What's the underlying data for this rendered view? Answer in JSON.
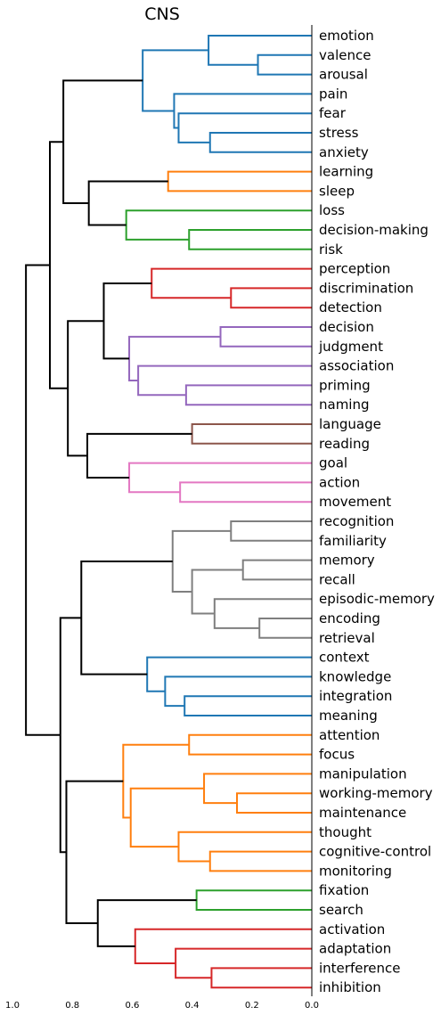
{
  "chart_data": {
    "type": "dendrogram",
    "title": "CNS",
    "orientation": "left",
    "xlim": [
      1.0,
      0.0
    ],
    "x_ticks": [
      {
        "value": 1.0,
        "label": "1.0"
      },
      {
        "value": 0.8,
        "label": "0.8"
      },
      {
        "value": 0.6,
        "label": "0.6"
      },
      {
        "value": 0.4,
        "label": "0.4"
      },
      {
        "value": 0.2,
        "label": "0.2"
      },
      {
        "value": 0.0,
        "label": "0.0"
      }
    ],
    "leaves": [
      "emotion",
      "valence",
      "arousal",
      "pain",
      "fear",
      "stress",
      "anxiety",
      "learning",
      "sleep",
      "loss",
      "decision-making",
      "risk",
      "perception",
      "discrimination",
      "detection",
      "decision",
      "judgment",
      "association",
      "priming",
      "naming",
      "language",
      "reading",
      "goal",
      "action",
      "movement",
      "recognition",
      "familiarity",
      "memory",
      "recall",
      "episodic-memory",
      "encoding",
      "retrieval",
      "context",
      "knowledge",
      "integration",
      "meaning",
      "attention",
      "focus",
      "manipulation",
      "working-memory",
      "maintenance",
      "thought",
      "cognitive-control",
      "monitoring",
      "fixation",
      "search",
      "activation",
      "adaptation",
      "interference",
      "inhibition"
    ],
    "colors": {
      "blue": "#1f77b4",
      "orange": "#ff7f0e",
      "green": "#2ca02c",
      "red": "#d62728",
      "purple": "#9467bd",
      "brown": "#8c564b",
      "pink": "#e377c2",
      "gray": "#7f7f7f",
      "black": "#000000"
    },
    "merges": [
      {
        "id": "m1",
        "left": "valence",
        "right": "arousal",
        "height": 0.18,
        "color": "blue"
      },
      {
        "id": "m2",
        "left": "emotion",
        "right": "m1",
        "height": 0.345,
        "color": "blue"
      },
      {
        "id": "m3",
        "left": "stress",
        "right": "anxiety",
        "height": 0.34,
        "color": "blue"
      },
      {
        "id": "m4",
        "left": "fear",
        "right": "m3",
        "height": 0.445,
        "color": "blue"
      },
      {
        "id": "m5",
        "left": "pain",
        "right": "m4",
        "height": 0.46,
        "color": "blue"
      },
      {
        "id": "m6",
        "left": "m2",
        "right": "m5",
        "height": 0.565,
        "color": "blue"
      },
      {
        "id": "m7",
        "left": "learning",
        "right": "sleep",
        "height": 0.48,
        "color": "orange"
      },
      {
        "id": "m8",
        "left": "decision-making",
        "right": "risk",
        "height": 0.41,
        "color": "green"
      },
      {
        "id": "m9",
        "left": "loss",
        "right": "m8",
        "height": 0.62,
        "color": "green"
      },
      {
        "id": "m10",
        "left": "m7",
        "right": "m9",
        "height": 0.745,
        "color": "black"
      },
      {
        "id": "m11",
        "left": "m6",
        "right": "m10",
        "height": 0.83,
        "color": "black"
      },
      {
        "id": "m12",
        "left": "discrimination",
        "right": "detection",
        "height": 0.27,
        "color": "red"
      },
      {
        "id": "m13",
        "left": "perception",
        "right": "m12",
        "height": 0.535,
        "color": "red"
      },
      {
        "id": "m14",
        "left": "decision",
        "right": "judgment",
        "height": 0.305,
        "color": "purple"
      },
      {
        "id": "m15",
        "left": "priming",
        "right": "naming",
        "height": 0.42,
        "color": "purple"
      },
      {
        "id": "m16",
        "left": "association",
        "right": "m15",
        "height": 0.58,
        "color": "purple"
      },
      {
        "id": "m17",
        "left": "m14",
        "right": "m16",
        "height": 0.61,
        "color": "purple"
      },
      {
        "id": "m18",
        "left": "m13",
        "right": "m17",
        "height": 0.695,
        "color": "black"
      },
      {
        "id": "m19",
        "left": "language",
        "right": "reading",
        "height": 0.4,
        "color": "brown"
      },
      {
        "id": "m20",
        "left": "action",
        "right": "movement",
        "height": 0.44,
        "color": "pink"
      },
      {
        "id": "m21",
        "left": "goal",
        "right": "m20",
        "height": 0.61,
        "color": "pink"
      },
      {
        "id": "m22",
        "left": "m19",
        "right": "m21",
        "height": 0.75,
        "color": "black"
      },
      {
        "id": "m23",
        "left": "m18",
        "right": "m22",
        "height": 0.815,
        "color": "black"
      },
      {
        "id": "m24",
        "left": "m11",
        "right": "m23",
        "height": 0.875,
        "color": "black"
      },
      {
        "id": "m25",
        "left": "recognition",
        "right": "familiarity",
        "height": 0.27,
        "color": "gray"
      },
      {
        "id": "m26",
        "left": "memory",
        "right": "recall",
        "height": 0.23,
        "color": "gray"
      },
      {
        "id": "m27",
        "left": "encoding",
        "right": "retrieval",
        "height": 0.175,
        "color": "gray"
      },
      {
        "id": "m28",
        "left": "episodic-memory",
        "right": "m27",
        "height": 0.325,
        "color": "gray"
      },
      {
        "id": "m29",
        "left": "m26",
        "right": "m28",
        "height": 0.4,
        "color": "gray"
      },
      {
        "id": "m30",
        "left": "m25",
        "right": "m29",
        "height": 0.465,
        "color": "gray"
      },
      {
        "id": "m31",
        "left": "integration",
        "right": "meaning",
        "height": 0.425,
        "color": "blue"
      },
      {
        "id": "m32",
        "left": "knowledge",
        "right": "m31",
        "height": 0.49,
        "color": "blue"
      },
      {
        "id": "m33",
        "left": "context",
        "right": "m32",
        "height": 0.55,
        "color": "blue"
      },
      {
        "id": "m34",
        "left": "m30",
        "right": "m33",
        "height": 0.77,
        "color": "black"
      },
      {
        "id": "m35",
        "left": "attention",
        "right": "focus",
        "height": 0.41,
        "color": "orange"
      },
      {
        "id": "m36",
        "left": "working-memory",
        "right": "maintenance",
        "height": 0.25,
        "color": "orange"
      },
      {
        "id": "m37",
        "left": "manipulation",
        "right": "m36",
        "height": 0.36,
        "color": "orange"
      },
      {
        "id": "m38",
        "left": "cognitive-control",
        "right": "monitoring",
        "height": 0.34,
        "color": "orange"
      },
      {
        "id": "m39",
        "left": "thought",
        "right": "m38",
        "height": 0.445,
        "color": "orange"
      },
      {
        "id": "m40",
        "left": "m37",
        "right": "m39",
        "height": 0.605,
        "color": "orange"
      },
      {
        "id": "m41",
        "left": "m35",
        "right": "m40",
        "height": 0.63,
        "color": "orange"
      },
      {
        "id": "m42",
        "left": "fixation",
        "right": "search",
        "height": 0.385,
        "color": "green"
      },
      {
        "id": "m43",
        "left": "interference",
        "right": "inhibition",
        "height": 0.335,
        "color": "red"
      },
      {
        "id": "m44",
        "left": "adaptation",
        "right": "m43",
        "height": 0.455,
        "color": "red"
      },
      {
        "id": "m45",
        "left": "activation",
        "right": "m44",
        "height": 0.59,
        "color": "red"
      },
      {
        "id": "m46",
        "left": "m42",
        "right": "m45",
        "height": 0.715,
        "color": "black"
      },
      {
        "id": "m47",
        "left": "m41",
        "right": "m46",
        "height": 0.82,
        "color": "black"
      },
      {
        "id": "m48",
        "left": "m34",
        "right": "m47",
        "height": 0.84,
        "color": "black"
      },
      {
        "id": "m49",
        "left": "m24",
        "right": "m48",
        "height": 0.955,
        "color": "black"
      }
    ]
  }
}
